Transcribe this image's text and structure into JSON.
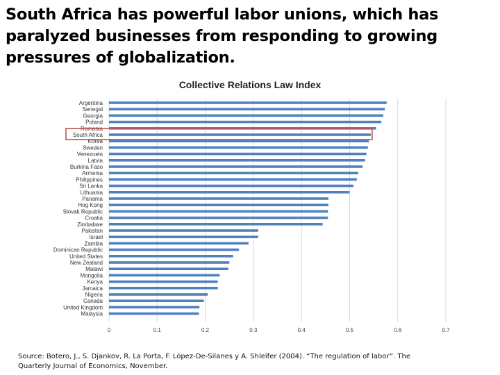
{
  "slide": {
    "title": "South Africa has powerful labor unions, which has paralyzed businesses from responding to growing pressures of globalization.",
    "source": "Source: Botero, J., S. Djankov, R. La Porta, F. López-De-Silanes y A. Shleifer (2004). “The regulation of labor”. The Quarterly Journal of Economics, November."
  },
  "colors": {
    "bar": "#4f81bd",
    "highlight_box": "#c0504d",
    "gridline": "#d9d9d9"
  },
  "chart_data": {
    "type": "bar",
    "orientation": "horizontal",
    "title": "Collective Relations Law Index",
    "xlim": [
      0,
      0.7
    ],
    "xticks": [
      "0",
      "0.1",
      "0.2",
      "0.3",
      "0.4",
      "0.5",
      "0.6",
      "0.7"
    ],
    "grid": true,
    "highlighted_category": "South Africa",
    "categories": [
      "Argentina",
      "Senegal",
      "Georgia",
      "Poland",
      "Romania",
      "South Africa",
      "Korea",
      "Sweden",
      "Venezuela",
      "Latvia",
      "Burkina Faso",
      "Armenia",
      "Philippines",
      "Sri Lanka",
      "Lithuania",
      "Panama",
      "Hog Kong",
      "Slovak Republic",
      "Croatia",
      "Zimbabwe",
      "Pakistan",
      "Israel",
      "Zambia",
      "Dominican Republic",
      "United States",
      "New Zealand",
      "Malawi",
      "Mongolia",
      "Kenya",
      "Jamaica",
      "Nigeria",
      "Canada",
      "United Kingdom",
      "Malaysia"
    ],
    "values": [
      0.577,
      0.573,
      0.57,
      0.566,
      0.555,
      0.544,
      0.54,
      0.538,
      0.535,
      0.532,
      0.527,
      0.518,
      0.515,
      0.508,
      0.5,
      0.456,
      0.456,
      0.455,
      0.455,
      0.444,
      0.31,
      0.31,
      0.29,
      0.27,
      0.258,
      0.25,
      0.248,
      0.23,
      0.226,
      0.226,
      0.205,
      0.197,
      0.188,
      0.187
    ]
  }
}
